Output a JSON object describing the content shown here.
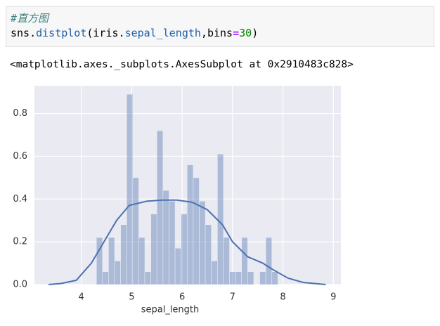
{
  "code_cell": {
    "comment": "#直方图",
    "tokens": [
      "sns.",
      "distplot",
      "(iris.",
      "sepal_length",
      ",bins",
      "=",
      "30",
      ")"
    ]
  },
  "output": "<matplotlib.axes._subplots.AxesSubplot at 0x2910483c828>",
  "chart_data": {
    "type": "histogram",
    "xlabel": "sepal_length",
    "color": "#4c72b0",
    "bins": [
      4.3,
      4.42,
      4.54,
      4.66,
      4.78,
      4.9,
      5.02,
      5.14,
      5.26,
      5.38,
      5.5,
      5.62,
      5.74,
      5.86,
      5.98,
      6.1,
      6.22,
      6.34,
      6.46,
      6.58,
      6.7,
      6.82,
      6.94,
      7.06,
      7.18,
      7.3,
      7.42,
      7.54,
      7.66,
      7.78,
      7.9
    ],
    "values": [
      0.22,
      0.06,
      0.22,
      0.11,
      0.28,
      0.89,
      0.5,
      0.22,
      0.06,
      0.33,
      0.72,
      0.44,
      0.39,
      0.17,
      0.33,
      0.56,
      0.5,
      0.39,
      0.28,
      0.11,
      0.61,
      0.22,
      0.06,
      0.06,
      0.22,
      0.06,
      0,
      0.06,
      0.22,
      0.06
    ],
    "kde": {
      "color": "#4c72b0",
      "x": [
        3.35,
        3.6,
        3.9,
        4.2,
        4.45,
        4.7,
        4.95,
        5.3,
        5.6,
        5.9,
        6.2,
        6.5,
        6.8,
        7.0,
        7.3,
        7.6,
        7.8,
        8.1,
        8.4,
        8.85
      ],
      "values": [
        0,
        0.005,
        0.02,
        0.1,
        0.2,
        0.3,
        0.37,
        0.39,
        0.395,
        0.395,
        0.385,
        0.35,
        0.28,
        0.2,
        0.13,
        0.1,
        0.07,
        0.03,
        0.01,
        0
      ]
    },
    "xlim": [
      3.07,
      9.15
    ],
    "ylim": [
      0,
      0.93
    ],
    "xticks": [
      4,
      5,
      6,
      7,
      8,
      9
    ],
    "yticks": [
      {
        "value": 0,
        "label": "0.0"
      },
      0.2,
      0.4,
      0.6,
      0.8
    ],
    "grid": true
  }
}
